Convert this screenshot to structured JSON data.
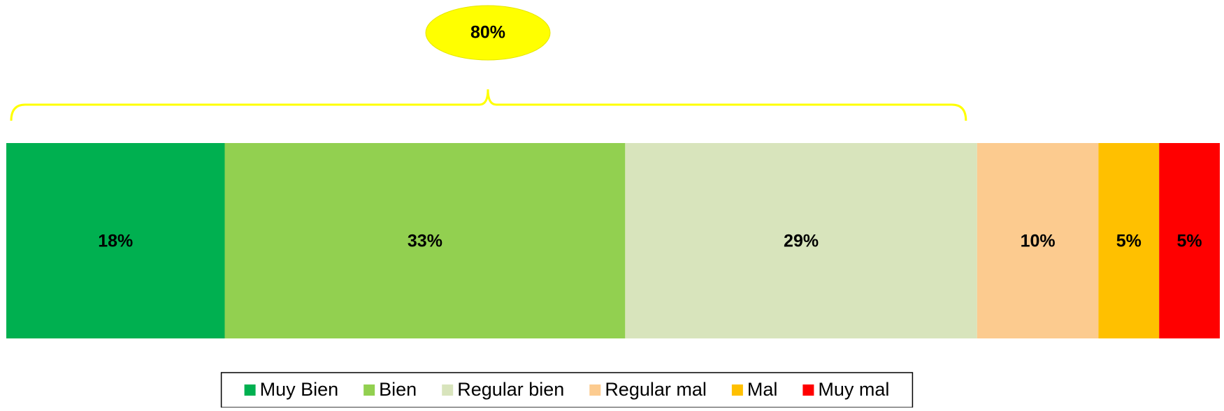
{
  "chart_data": {
    "type": "stacked_bar_100",
    "categories": [
      null
    ],
    "annotation": "80%",
    "series": [
      {
        "name": "Muy Bien",
        "color": "#00B050",
        "values": [
          18
        ],
        "value_labels": [
          "18%"
        ]
      },
      {
        "name": "Bien",
        "color": "#92D050",
        "values": [
          33
        ],
        "value_labels": [
          "33%"
        ]
      },
      {
        "name": "Regular bien",
        "color": "#D8E4BC",
        "values": [
          29
        ],
        "value_labels": [
          "29%"
        ]
      },
      {
        "name": "Regular mal",
        "color": "#FCCB8F",
        "values": [
          10
        ],
        "value_labels": [
          "10%"
        ]
      },
      {
        "name": "Mal",
        "color": "#FFC000",
        "values": [
          5
        ],
        "value_labels": [
          "5%"
        ]
      },
      {
        "name": "Muy mal",
        "color": "#FF0000",
        "values": [
          5
        ],
        "value_labels": [
          "5%"
        ]
      }
    ]
  }
}
